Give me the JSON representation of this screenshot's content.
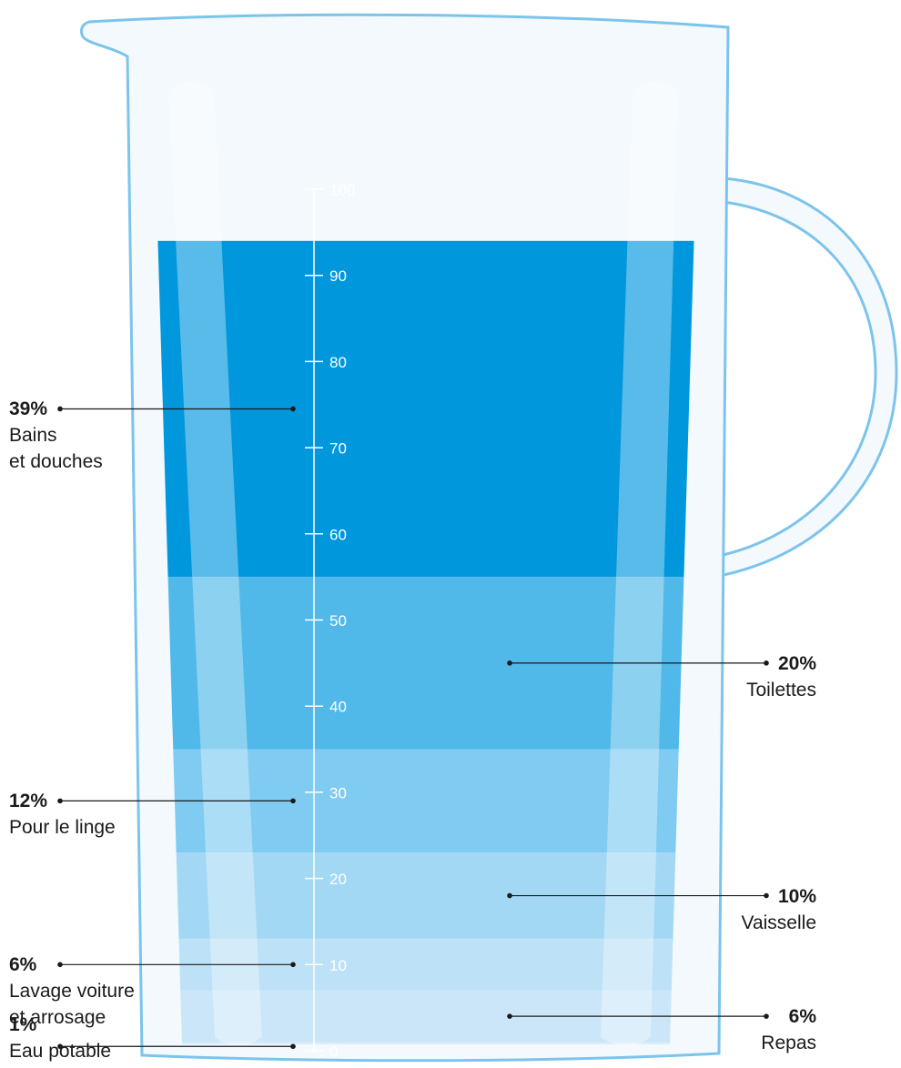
{
  "chart_data": {
    "type": "stacked-jug",
    "ylim": [
      0,
      100
    ],
    "yticks": [
      0,
      10,
      20,
      30,
      40,
      50,
      60,
      70,
      80,
      90,
      100
    ],
    "series": [
      {
        "name": "Eau potable",
        "color": "#dcedfa",
        "values": [
          1
        ],
        "value_labels": [
          "1%"
        ]
      },
      {
        "name": "Repas",
        "color": "#cbe6f8",
        "values": [
          6
        ],
        "value_labels": [
          "6%"
        ]
      },
      {
        "name": "Lavage voiture\net arrosage",
        "color": "#bde1f7",
        "values": [
          6
        ],
        "value_labels": [
          "6%"
        ]
      },
      {
        "name": "Vaisselle",
        "color": "#a3d8f4",
        "values": [
          10
        ],
        "value_labels": [
          "10%"
        ]
      },
      {
        "name": "Pour le linge",
        "color": "#80cbf1",
        "values": [
          12
        ],
        "value_labels": [
          "12%"
        ]
      },
      {
        "name": "Toilettes",
        "color": "#50b9ea",
        "values": [
          20
        ],
        "value_labels": [
          "20%"
        ]
      },
      {
        "name": "Bains\net douches",
        "color": "#0097dd",
        "values": [
          39
        ],
        "value_labels": [
          "39%"
        ]
      }
    ]
  }
}
